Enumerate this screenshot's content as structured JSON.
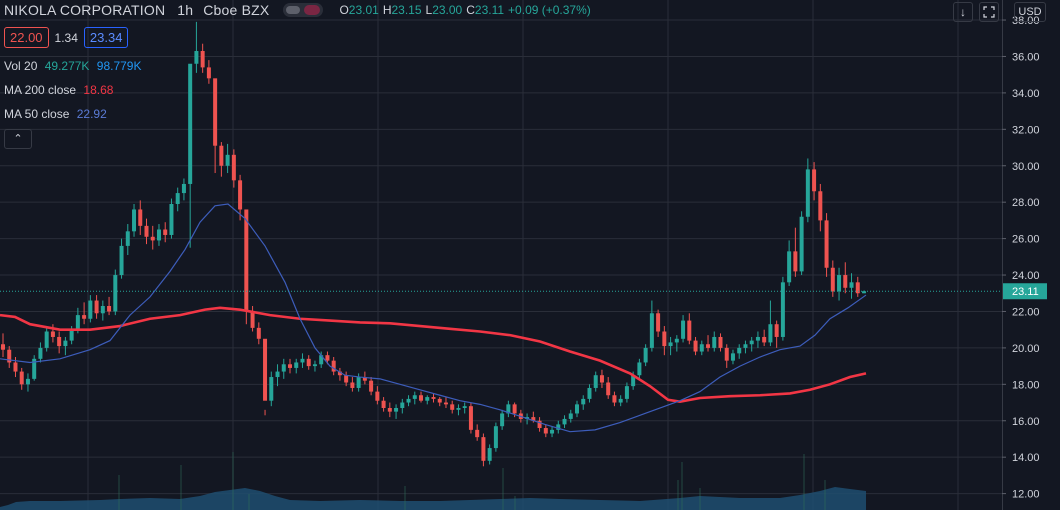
{
  "header": {
    "symbol": "NIKOLA CORPORATION",
    "interval": "1h",
    "exchange": "Cboe BZX",
    "ohlc": [
      {
        "k": "O",
        "v": "23.01"
      },
      {
        "k": "H",
        "v": "23.15"
      },
      {
        "k": "L",
        "v": "23.00"
      },
      {
        "k": "C",
        "v": "23.11"
      }
    ],
    "change": "+0.09 (+0.37%)"
  },
  "quote": {
    "bid": "22.00",
    "spread": "1.34",
    "ask": "23.34"
  },
  "legend": {
    "vol_label": "Vol 20",
    "vol_v1": "49.277K",
    "vol_v2": "98.779K",
    "ma200_label": "MA 200 close",
    "ma200_value": "18.68",
    "ma50_label": "MA 50 close",
    "ma50_value": "22.92"
  },
  "controls": {
    "collapse_icon": "chevron-up-icon",
    "download_icon": "download-icon",
    "fullscreen_icon": "fullscreen-icon",
    "currency": "USD"
  },
  "colors": {
    "background": "#131722",
    "up": "#26a69a",
    "down": "#ef5350",
    "ma200": "#f23645",
    "ma50": "#3d5dbb",
    "volume": "#1e4e70",
    "grid": "#2a2e39"
  },
  "chart_data": {
    "type": "candlestick",
    "y_axis": {
      "ticks": [
        "38.00",
        "36.00",
        "34.00",
        "32.00",
        "30.00",
        "28.00",
        "26.00",
        "24.00",
        "22.00",
        "20.00",
        "18.00",
        "16.00",
        "14.00",
        "12.00"
      ],
      "range": [
        11.1,
        39.1
      ],
      "position": "right"
    },
    "last_price": "23.11",
    "grid": true,
    "ohlc_series": [
      [
        20.2,
        20.8,
        19.5,
        19.9
      ],
      [
        19.9,
        20.1,
        18.9,
        19.2
      ],
      [
        19.2,
        19.5,
        18.4,
        18.7
      ],
      [
        18.7,
        18.9,
        17.7,
        18.0
      ],
      [
        18.0,
        18.6,
        17.6,
        18.3
      ],
      [
        18.3,
        19.6,
        18.2,
        19.4
      ],
      [
        19.4,
        20.3,
        19.2,
        20.0
      ],
      [
        20.0,
        21.2,
        19.8,
        20.9
      ],
      [
        20.9,
        21.3,
        20.3,
        20.6
      ],
      [
        20.6,
        20.9,
        19.7,
        20.1
      ],
      [
        20.1,
        20.6,
        19.6,
        20.4
      ],
      [
        20.4,
        21.2,
        20.2,
        21.0
      ],
      [
        21.0,
        22.2,
        20.8,
        21.8
      ],
      [
        21.8,
        22.5,
        21.3,
        21.6
      ],
      [
        21.6,
        22.9,
        21.4,
        22.6
      ],
      [
        22.6,
        22.9,
        21.6,
        21.9
      ],
      [
        21.9,
        22.6,
        21.5,
        22.3
      ],
      [
        22.3,
        22.8,
        21.8,
        22.0
      ],
      [
        22.0,
        24.3,
        21.8,
        24.0
      ],
      [
        24.0,
        26.0,
        23.8,
        25.6
      ],
      [
        25.6,
        26.8,
        25.1,
        26.4
      ],
      [
        26.4,
        27.9,
        26.1,
        27.6
      ],
      [
        27.6,
        28.1,
        26.2,
        26.7
      ],
      [
        26.7,
        27.1,
        25.7,
        26.1
      ],
      [
        26.1,
        26.7,
        25.4,
        25.9
      ],
      [
        25.9,
        26.8,
        25.6,
        26.5
      ],
      [
        26.5,
        26.9,
        25.8,
        26.2
      ],
      [
        26.2,
        28.2,
        26.0,
        27.9
      ],
      [
        27.9,
        28.8,
        27.5,
        28.5
      ],
      [
        28.5,
        29.3,
        28.1,
        29.0
      ],
      [
        29.0,
        31.1,
        25.5,
        35.6
      ],
      [
        35.6,
        37.9,
        35.1,
        36.3
      ],
      [
        36.3,
        36.7,
        35.1,
        35.4
      ],
      [
        35.4,
        35.8,
        34.5,
        34.8
      ],
      [
        34.8,
        31.9,
        29.6,
        31.1
      ],
      [
        31.1,
        31.3,
        29.4,
        30.0
      ],
      [
        30.0,
        31.2,
        29.6,
        30.6
      ],
      [
        30.6,
        30.9,
        28.8,
        29.2
      ],
      [
        29.2,
        29.5,
        27.0,
        27.6
      ],
      [
        27.6,
        23.0,
        21.3,
        22.0
      ],
      [
        22.0,
        22.3,
        20.9,
        21.1
      ],
      [
        21.1,
        21.4,
        20.2,
        20.5
      ],
      [
        20.5,
        16.6,
        16.3,
        17.1
      ],
      [
        17.1,
        18.7,
        16.8,
        18.4
      ],
      [
        18.4,
        19.1,
        17.9,
        18.7
      ],
      [
        18.7,
        19.4,
        18.3,
        19.1
      ],
      [
        19.1,
        19.4,
        18.6,
        18.9
      ],
      [
        18.9,
        19.4,
        18.6,
        19.2
      ],
      [
        19.2,
        19.7,
        18.9,
        19.4
      ],
      [
        19.4,
        19.6,
        18.8,
        19.0
      ],
      [
        19.0,
        19.3,
        18.7,
        19.1
      ],
      [
        19.1,
        19.8,
        18.9,
        19.6
      ],
      [
        19.6,
        19.8,
        19.1,
        19.3
      ],
      [
        19.3,
        19.5,
        18.5,
        18.7
      ],
      [
        18.7,
        18.9,
        18.2,
        18.5
      ],
      [
        18.5,
        18.7,
        17.9,
        18.1
      ],
      [
        18.1,
        18.4,
        17.6,
        17.8
      ],
      [
        17.8,
        18.6,
        17.6,
        18.4
      ],
      [
        18.4,
        18.7,
        18.0,
        18.2
      ],
      [
        18.2,
        18.4,
        17.4,
        17.6
      ],
      [
        17.6,
        17.9,
        16.9,
        17.1
      ],
      [
        17.1,
        17.3,
        16.5,
        16.7
      ],
      [
        16.7,
        17.0,
        16.2,
        16.5
      ],
      [
        16.5,
        16.9,
        16.1,
        16.7
      ],
      [
        16.7,
        17.2,
        16.4,
        17.0
      ],
      [
        17.0,
        17.4,
        16.8,
        17.2
      ],
      [
        17.2,
        17.6,
        16.9,
        17.4
      ],
      [
        17.4,
        17.6,
        17.0,
        17.1
      ],
      [
        17.1,
        17.4,
        16.9,
        17.3
      ],
      [
        17.3,
        17.5,
        17.0,
        17.2
      ],
      [
        17.2,
        17.3,
        16.8,
        17.0
      ],
      [
        17.0,
        17.3,
        16.7,
        16.9
      ],
      [
        16.9,
        17.1,
        16.4,
        16.6
      ],
      [
        16.6,
        16.9,
        16.3,
        16.7
      ],
      [
        16.7,
        17.0,
        16.4,
        16.8
      ],
      [
        16.8,
        17.0,
        15.3,
        15.5
      ],
      [
        15.5,
        15.8,
        14.9,
        15.1
      ],
      [
        15.1,
        15.3,
        13.5,
        13.8
      ],
      [
        13.8,
        14.7,
        13.6,
        14.5
      ],
      [
        14.5,
        15.9,
        14.3,
        15.7
      ],
      [
        15.7,
        16.6,
        15.5,
        16.4
      ],
      [
        16.4,
        17.1,
        16.2,
        16.9
      ],
      [
        16.9,
        17.0,
        16.2,
        16.4
      ],
      [
        16.4,
        16.6,
        15.9,
        16.1
      ],
      [
        16.1,
        16.4,
        15.8,
        16.2
      ],
      [
        16.2,
        16.5,
        15.9,
        16.0
      ],
      [
        16.0,
        16.2,
        15.4,
        15.6
      ],
      [
        15.6,
        15.8,
        15.1,
        15.3
      ],
      [
        15.3,
        15.7,
        15.1,
        15.5
      ],
      [
        15.5,
        16.0,
        15.3,
        15.8
      ],
      [
        15.8,
        16.3,
        15.6,
        16.1
      ],
      [
        16.1,
        16.6,
        15.9,
        16.4
      ],
      [
        16.4,
        17.1,
        16.2,
        16.9
      ],
      [
        16.9,
        17.4,
        16.6,
        17.2
      ],
      [
        17.2,
        18.0,
        17.0,
        17.8
      ],
      [
        17.8,
        18.7,
        17.6,
        18.5
      ],
      [
        18.5,
        18.8,
        17.8,
        18.1
      ],
      [
        18.1,
        18.4,
        17.2,
        17.4
      ],
      [
        17.4,
        17.6,
        16.8,
        17.0
      ],
      [
        17.0,
        17.4,
        16.8,
        17.2
      ],
      [
        17.2,
        18.1,
        17.0,
        17.9
      ],
      [
        17.9,
        18.7,
        17.7,
        18.5
      ],
      [
        18.5,
        19.4,
        18.3,
        19.2
      ],
      [
        19.2,
        20.2,
        19.0,
        20.0
      ],
      [
        20.0,
        22.6,
        19.8,
        21.9
      ],
      [
        21.9,
        22.1,
        20.6,
        20.9
      ],
      [
        20.9,
        21.2,
        19.6,
        20.1
      ],
      [
        20.1,
        20.6,
        19.6,
        20.3
      ],
      [
        20.3,
        20.7,
        19.8,
        20.5
      ],
      [
        20.5,
        21.8,
        20.3,
        21.5
      ],
      [
        21.5,
        21.9,
        20.2,
        20.4
      ],
      [
        20.4,
        20.6,
        19.6,
        19.8
      ],
      [
        19.8,
        20.4,
        19.6,
        20.2
      ],
      [
        20.2,
        20.7,
        19.8,
        20.0
      ],
      [
        20.0,
        20.9,
        19.8,
        20.6
      ],
      [
        20.6,
        20.8,
        19.8,
        20.0
      ],
      [
        20.0,
        20.2,
        18.9,
        19.3
      ],
      [
        19.3,
        19.9,
        19.1,
        19.7
      ],
      [
        19.7,
        20.2,
        19.4,
        20.0
      ],
      [
        20.0,
        20.4,
        19.7,
        20.2
      ],
      [
        20.2,
        20.6,
        19.8,
        20.4
      ],
      [
        20.4,
        20.9,
        20.0,
        20.6
      ],
      [
        20.6,
        21.0,
        20.1,
        20.3
      ],
      [
        20.3,
        22.6,
        20.1,
        21.3
      ],
      [
        21.3,
        21.5,
        20.0,
        20.6
      ],
      [
        20.6,
        23.9,
        20.4,
        23.6
      ],
      [
        23.6,
        25.9,
        23.4,
        25.3
      ],
      [
        25.3,
        26.6,
        23.9,
        24.2
      ],
      [
        24.2,
        27.5,
        24.0,
        27.2
      ],
      [
        27.2,
        30.4,
        26.9,
        29.8
      ],
      [
        29.8,
        30.2,
        28.1,
        28.6
      ],
      [
        28.6,
        29.0,
        26.4,
        27.0
      ],
      [
        27.0,
        27.4,
        23.9,
        24.4
      ],
      [
        24.4,
        24.8,
        22.8,
        23.1
      ],
      [
        23.1,
        24.4,
        22.6,
        24.0
      ],
      [
        24.0,
        24.7,
        23.0,
        23.3
      ],
      [
        23.3,
        24.1,
        22.7,
        23.6
      ],
      [
        23.6,
        23.9,
        22.8,
        23.0
      ],
      [
        23.0,
        23.15,
        23.0,
        23.11
      ]
    ],
    "ma200": [
      [
        0,
        21.8
      ],
      [
        15,
        21.7
      ],
      [
        30,
        21.3
      ],
      [
        60,
        21.0
      ],
      [
        90,
        21.0
      ],
      [
        120,
        21.2
      ],
      [
        150,
        21.6
      ],
      [
        180,
        21.8
      ],
      [
        205,
        22.1
      ],
      [
        220,
        22.2
      ],
      [
        240,
        22.1
      ],
      [
        270,
        21.8
      ],
      [
        300,
        21.6
      ],
      [
        330,
        21.5
      ],
      [
        360,
        21.4
      ],
      [
        390,
        21.35
      ],
      [
        420,
        21.2
      ],
      [
        450,
        21.05
      ],
      [
        480,
        20.9
      ],
      [
        510,
        20.7
      ],
      [
        540,
        20.35
      ],
      [
        570,
        19.8
      ],
      [
        600,
        19.3
      ],
      [
        630,
        18.6
      ],
      [
        650,
        17.9
      ],
      [
        668,
        17.15
      ],
      [
        680,
        17.05
      ],
      [
        700,
        17.25
      ],
      [
        730,
        17.35
      ],
      [
        760,
        17.4
      ],
      [
        790,
        17.5
      ],
      [
        810,
        17.7
      ],
      [
        830,
        18.0
      ],
      [
        850,
        18.4
      ],
      [
        866,
        18.6
      ]
    ],
    "ma50": [
      [
        0,
        19.4
      ],
      [
        30,
        19.2
      ],
      [
        60,
        19.4
      ],
      [
        90,
        19.9
      ],
      [
        110,
        20.4
      ],
      [
        130,
        21.8
      ],
      [
        150,
        22.8
      ],
      [
        170,
        24.2
      ],
      [
        185,
        25.4
      ],
      [
        200,
        26.9
      ],
      [
        215,
        27.8
      ],
      [
        228,
        27.9
      ],
      [
        245,
        27.1
      ],
      [
        265,
        25.6
      ],
      [
        285,
        23.6
      ],
      [
        300,
        21.6
      ],
      [
        315,
        20.0
      ],
      [
        330,
        19.0
      ],
      [
        345,
        18.5
      ],
      [
        360,
        18.4
      ],
      [
        380,
        18.3
      ],
      [
        400,
        18.0
      ],
      [
        420,
        17.7
      ],
      [
        440,
        17.4
      ],
      [
        460,
        17.1
      ],
      [
        480,
        16.9
      ],
      [
        500,
        16.6
      ],
      [
        520,
        16.25
      ],
      [
        545,
        15.8
      ],
      [
        570,
        15.4
      ],
      [
        595,
        15.5
      ],
      [
        620,
        15.9
      ],
      [
        645,
        16.4
      ],
      [
        665,
        16.8
      ],
      [
        680,
        17.1
      ],
      [
        700,
        17.6
      ],
      [
        720,
        18.4
      ],
      [
        740,
        19.0
      ],
      [
        760,
        19.5
      ],
      [
        780,
        19.9
      ],
      [
        800,
        20.1
      ],
      [
        815,
        20.7
      ],
      [
        830,
        21.6
      ],
      [
        848,
        22.2
      ],
      [
        866,
        22.9
      ]
    ],
    "volume": [
      [
        0,
        3
      ],
      [
        8,
        5
      ],
      [
        16,
        8
      ],
      [
        30,
        9
      ],
      [
        60,
        9
      ],
      [
        100,
        10
      ],
      [
        120,
        11
      ],
      [
        150,
        12
      ],
      [
        180,
        11
      ],
      [
        200,
        14
      ],
      [
        215,
        18
      ],
      [
        230,
        20
      ],
      [
        245,
        22
      ],
      [
        260,
        19
      ],
      [
        275,
        14
      ],
      [
        290,
        10
      ],
      [
        320,
        9
      ],
      [
        360,
        10
      ],
      [
        400,
        9
      ],
      [
        440,
        9
      ],
      [
        470,
        10
      ],
      [
        500,
        11
      ],
      [
        530,
        12
      ],
      [
        560,
        11
      ],
      [
        600,
        10
      ],
      [
        640,
        9
      ],
      [
        680,
        12
      ],
      [
        700,
        14
      ],
      [
        740,
        12
      ],
      [
        780,
        12
      ],
      [
        800,
        15
      ],
      [
        820,
        19
      ],
      [
        835,
        23
      ],
      [
        850,
        21
      ],
      [
        866,
        19
      ]
    ],
    "volume_spikes": [
      [
        119,
        35
      ],
      [
        181,
        45
      ],
      [
        233,
        58
      ],
      [
        249,
        16
      ],
      [
        405,
        24
      ],
      [
        503,
        42
      ],
      [
        515,
        14
      ],
      [
        678,
        30
      ],
      [
        682,
        48
      ],
      [
        700,
        22
      ],
      [
        804,
        56
      ],
      [
        825,
        30
      ]
    ]
  }
}
